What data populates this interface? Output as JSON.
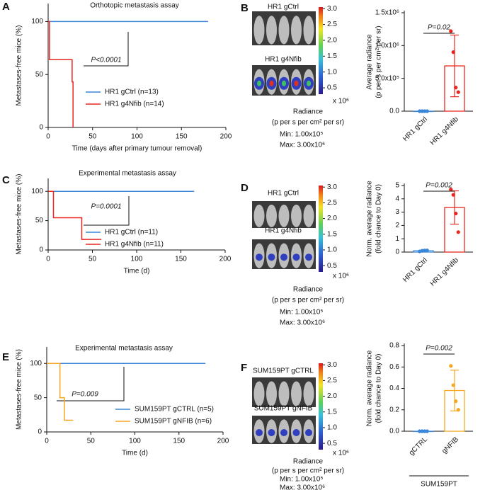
{
  "chart_data": [
    {
      "type": "survival",
      "panel": "A",
      "title": "Orthotopic metastasis assay",
      "xlabel": "Time (days after primary tumour removal)",
      "ylabel": "Metastases-free mice (%)",
      "xlim": [
        0,
        200
      ],
      "xticks": [
        0,
        50,
        100,
        150,
        200
      ],
      "ylim": [
        0,
        117
      ],
      "yticks": [
        0,
        50,
        100
      ],
      "annotation": "P<0.0001",
      "legend": "lower right",
      "series": [
        {
          "name": "HR1 gCtrl (n=13)",
          "color": "#3a86d8",
          "x": [
            0,
            180
          ],
          "values": [
            100,
            100
          ]
        },
        {
          "name": "HR1 g4Nfib (n=14)",
          "color": "#e8261f",
          "x": [
            0,
            1.5,
            27,
            28
          ],
          "values": [
            100,
            64,
            43,
            0
          ]
        }
      ]
    },
    {
      "type": "imaging",
      "panel": "B",
      "labels": [
        "HR1 gCtrl",
        "HR1 g4Nfib"
      ],
      "colorbar": {
        "lim": [
          0.3,
          3.05
        ],
        "ticks": [
          {
            "value": 3,
            "label": "3.0"
          },
          2.5,
          {
            "value": 2,
            "label": "2.0"
          },
          1.5,
          {
            "value": 1,
            "label": "1.0"
          },
          0.5
        ]
      },
      "multiplier": "x 10⁶",
      "legend_text": [
        "Radiance",
        "(p per s per cm² per sr)",
        "Min: 1.00x10⁵",
        "Max: 3.00x10⁶"
      ]
    },
    {
      "type": "dotbar",
      "ylabel": [
        "Average radiance",
        "(p per s per cm² per sr)"
      ],
      "categories": [
        "HR1 gCtrl",
        "HR1 g4Nfib"
      ],
      "values": [
        0,
        690000
      ],
      "errors": [
        0,
        470000
      ],
      "points": [
        [
          0,
          0,
          0,
          0
        ],
        [
          1220000,
          900000,
          360000,
          290000
        ]
      ],
      "colors": [
        "#3a86d8",
        "#e8261f"
      ],
      "ylim": [
        0,
        1500000
      ],
      "yticks": [
        {
          "value": 0,
          "label": "0.0"
        },
        {
          "value": 500000,
          "label": "5.0x10⁵"
        },
        {
          "value": 1000000,
          "label": "1.0x10⁶"
        },
        {
          "value": 1500000,
          "label": "1.5x10⁶"
        }
      ],
      "annotation": "P=0.02"
    },
    {
      "type": "survival",
      "panel": "C",
      "title": "Experimental metastasis assay",
      "xlabel": "Time (d)",
      "ylabel": "Metastases-free mice (%)",
      "xlim": [
        0,
        200
      ],
      "xticks": [
        0,
        50,
        100,
        150,
        200
      ],
      "ylim": [
        0,
        122
      ],
      "yticks": [
        0,
        50,
        100
      ],
      "annotation": "P=0.0001",
      "legend": "lower right",
      "series": [
        {
          "name": "HR1 gCtrl (n=11)",
          "color": "#3a86d8",
          "x": [
            0,
            165
          ],
          "values": [
            100,
            100
          ]
        },
        {
          "name": "HR1 g4Nfib (n=11)",
          "color": "#e8261f",
          "x": [
            0,
            6,
            38,
            60
          ],
          "values": [
            100,
            55,
            18,
            18
          ]
        }
      ]
    },
    {
      "type": "imaging",
      "panel": "D",
      "labels": [
        "HR1 gCtrl",
        "HR1 g4Nfib"
      ],
      "colorbar": {
        "lim": [
          0.3,
          3.05
        ],
        "ticks": [
          {
            "value": 3,
            "label": "3.0"
          },
          2.5,
          {
            "value": 2,
            "label": "2.0"
          },
          1.5,
          {
            "value": 1,
            "label": "1.0"
          },
          0.5
        ]
      },
      "multiplier": "x 10⁶",
      "legend_text": [
        "Radiance",
        "(p per s per cm² per sr)",
        "Min: 1.00x10⁵",
        "Max: 3.00x10⁶"
      ]
    },
    {
      "type": "dotbar",
      "ylabel": [
        "Norm. average radiance",
        "(fold chance to Day 0)"
      ],
      "categories": [
        "HR1 gCtrl",
        "HR1 g4Nfib"
      ],
      "values": [
        0.1,
        3.35
      ],
      "errors": [
        0.03,
        1.25
      ],
      "points": [
        [
          0.05,
          0.1,
          0.12,
          0.13
        ],
        [
          4.7,
          4.3,
          2.9,
          1.5
        ]
      ],
      "colors": [
        "#3a86d8",
        "#e8261f"
      ],
      "ylim": [
        0,
        5
      ],
      "yticks": [
        0,
        1,
        2,
        3,
        4,
        5
      ],
      "annotation": "P=0.002"
    },
    {
      "type": "survival",
      "panel": "E",
      "title": "Experimental metastasis assay",
      "xlabel": "Time (d)",
      "ylabel": "Metastases-free mice (%)",
      "xlim": [
        0,
        200
      ],
      "xticks": [
        0,
        50,
        100,
        150,
        200
      ],
      "ylim": [
        0,
        124
      ],
      "yticks": [
        0,
        50,
        100
      ],
      "annotation": "P=0.009",
      "legend": "lower right",
      "series": [
        {
          "name": "SUM159PT gCTRL (n=5)",
          "color": "#3a86d8",
          "x": [
            0,
            180
          ],
          "values": [
            100,
            100
          ]
        },
        {
          "name": "SUM159PT gNFIB (n=6)",
          "color": "#f5a623",
          "x": [
            0,
            15,
            20,
            30
          ],
          "values": [
            100,
            50,
            17,
            17
          ]
        }
      ]
    },
    {
      "type": "imaging",
      "panel": "F",
      "labels": [
        "SUM159PT gCTRL",
        "SUM159PT gNFIB"
      ],
      "colorbar": {
        "lim": [
          0.3,
          3.05
        ],
        "ticks": [
          {
            "value": 3,
            "label": "3.0"
          },
          2.5,
          {
            "value": 2,
            "label": "2.0"
          },
          1.5,
          {
            "value": 1,
            "label": "1.0"
          },
          0.5
        ]
      },
      "multiplier": "x 10⁶",
      "legend_text": [
        "Radiance",
        "(p per s per cm² per sr)",
        "Min: 1.00x10⁵",
        "Max: 3.00x10⁶"
      ]
    },
    {
      "type": "dotbar",
      "ylabel": [
        "Norm. average radiance",
        "(fold chance to Day 0)"
      ],
      "categories": [
        "gCTRL",
        "gNFIB"
      ],
      "values": [
        0,
        0.38
      ],
      "errors": [
        0,
        0.19
      ],
      "points": [
        [
          0,
          0,
          0,
          0
        ],
        [
          0.61,
          0.43,
          0.28,
          0.2
        ]
      ],
      "colors": [
        "#3a86d8",
        "#f5a623"
      ],
      "ylim": [
        0,
        0.8
      ],
      "yticks": [
        {
          "value": 0,
          "label": "0.0"
        },
        0.2,
        0.4,
        0.6,
        0.8
      ],
      "annotation": "P=0.002",
      "group_label": "SUM159PT"
    }
  ]
}
